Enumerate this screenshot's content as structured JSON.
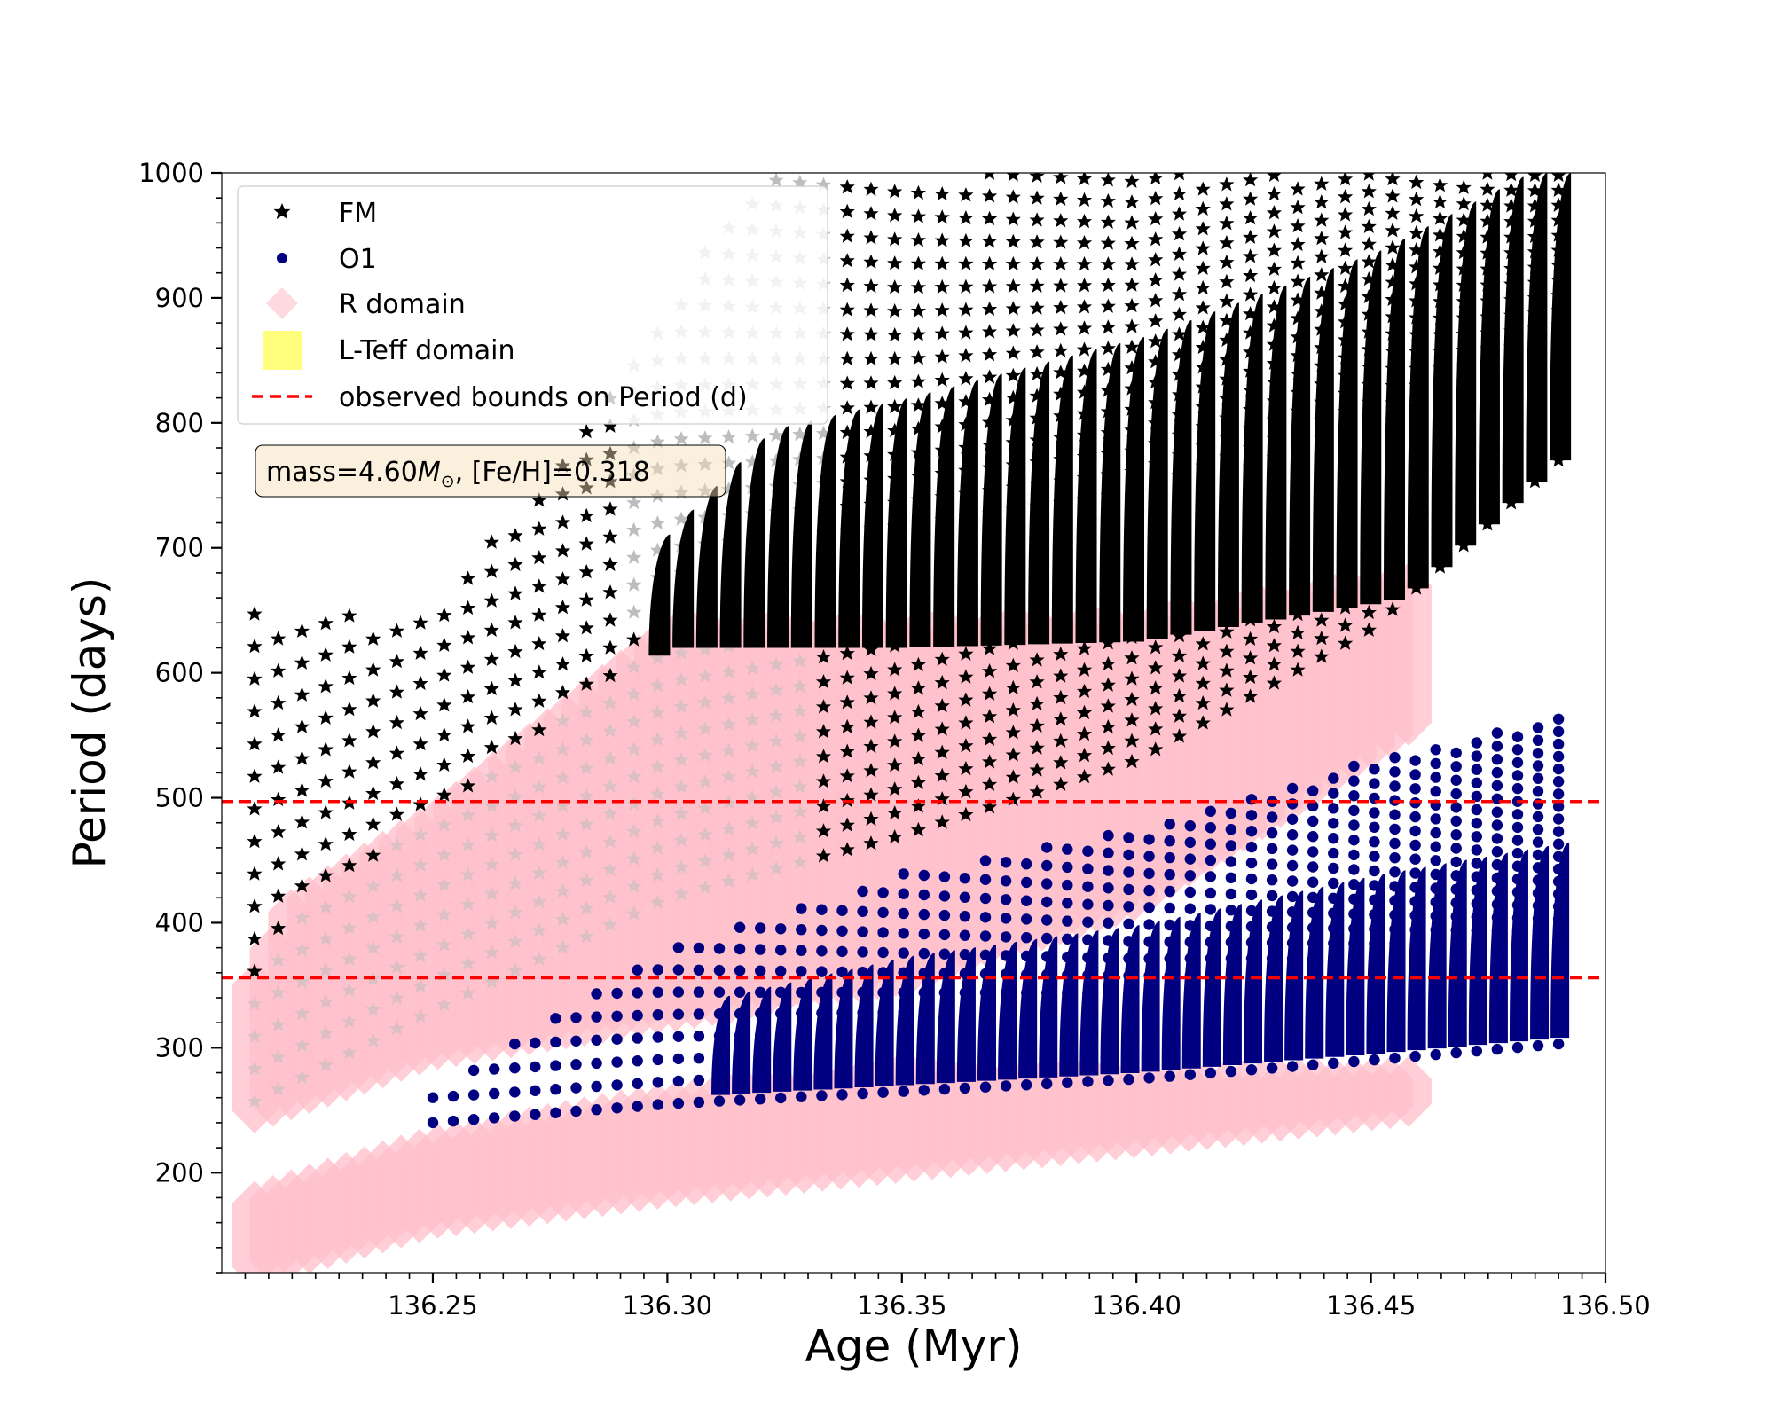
{
  "chart_data": {
    "type": "scatter",
    "xlabel": "Age (Myr)",
    "ylabel": "Period (days)",
    "xlim": [
      136.205,
      136.5
    ],
    "ylim": [
      120,
      1000
    ],
    "xticks": [
      "136.25",
      "136.30",
      "136.35",
      "136.40",
      "136.45",
      "136.50"
    ],
    "yticks": [
      "200",
      "300",
      "400",
      "500",
      "600",
      "700",
      "800",
      "900",
      "1000"
    ],
    "grid": false,
    "legend_position": "top-left",
    "legend": [
      "FM",
      "O1",
      "R domain",
      "L-Teff domain",
      "observed bounds on Period (d)"
    ],
    "annotation": {
      "prefix": "mass=4.60",
      "symbol": "M",
      "sub": "⊙",
      "suffix": ", [Fe/H]=0.318"
    },
    "colors": {
      "fm": "#000000",
      "fm_faded": "#bdbdbd",
      "o1": "#000080",
      "r_domain": "#ffc0cb",
      "lteff": "#ffff66",
      "bounds": "#ff0000"
    },
    "observed_bounds": [
      356,
      497
    ],
    "series": [
      {
        "name": "FM",
        "x_start": 136.212,
        "x_end": 136.49,
        "tracks": 56,
        "envelope_low": [
          [
            136.212,
            257
          ],
          [
            136.25,
            330
          ],
          [
            136.3,
            420
          ],
          [
            136.35,
            470
          ],
          [
            136.4,
            530
          ],
          [
            136.45,
            635
          ],
          [
            136.49,
            770
          ]
        ],
        "envelope_high": [
          [
            136.25,
            650
          ],
          [
            136.28,
            790
          ],
          [
            136.32,
            1000
          ],
          [
            136.49,
            1000
          ]
        ]
      },
      {
        "name": "O1",
        "x_start": 136.25,
        "x_end": 136.49,
        "tracks": 56,
        "envelope_low": [
          [
            136.25,
            240
          ],
          [
            136.3,
            255
          ],
          [
            136.35,
            265
          ],
          [
            136.4,
            275
          ],
          [
            136.45,
            290
          ],
          [
            136.49,
            303
          ]
        ],
        "envelope_high": [
          [
            136.25,
            265
          ],
          [
            136.3,
            380
          ],
          [
            136.35,
            440
          ],
          [
            136.4,
            475
          ],
          [
            136.45,
            530
          ],
          [
            136.49,
            563
          ]
        ]
      },
      {
        "name": "R domain",
        "x_start": 136.212,
        "x_end": 136.458,
        "envelope_low_fm": [
          [
            136.212,
            250
          ],
          [
            136.25,
            300
          ],
          [
            136.3,
            330
          ],
          [
            136.35,
            360
          ],
          [
            136.4,
            420
          ],
          [
            136.458,
            560
          ]
        ],
        "envelope_high_fm": [
          [
            136.212,
            350
          ],
          [
            136.22,
            410
          ],
          [
            136.25,
            480
          ],
          [
            136.3,
            630
          ],
          [
            136.35,
            630
          ],
          [
            136.4,
            635
          ],
          [
            136.458,
            670
          ]
        ],
        "envelope_low_o1": [
          [
            136.212,
            125
          ],
          [
            136.25,
            165
          ],
          [
            136.3,
            190
          ],
          [
            136.35,
            210
          ],
          [
            136.4,
            230
          ],
          [
            136.458,
            255
          ]
        ],
        "envelope_high_o1": [
          [
            136.212,
            175
          ],
          [
            136.25,
            220
          ],
          [
            136.3,
            255
          ],
          [
            136.35,
            275
          ],
          [
            136.4,
            270
          ],
          [
            136.458,
            275
          ]
        ]
      }
    ]
  }
}
